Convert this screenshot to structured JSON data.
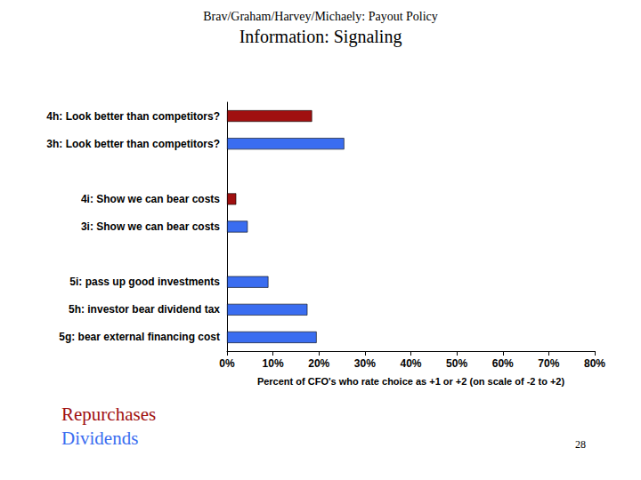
{
  "chart_data": {
    "type": "bar",
    "orientation": "horizontal",
    "subtitle": "Brav/Graham/Harvey/Michaely: Payout Policy",
    "title": "Information: Signaling",
    "x_label": "Percent of CFO's who rate choice as +1 or +2 (on scale of -2 to +2)",
    "categories": [
      "4h: Look better than competitors?",
      "3h: Look better than competitors?",
      null,
      "4i: Show we can bear costs",
      "3i: Show we can bear costs",
      null,
      "5i: pass up good investments",
      "5h: investor bear dividend tax",
      "5g: bear external financing cost"
    ],
    "series": [
      {
        "name": "Repurchases",
        "color": "#a01010",
        "values": [
          18.5,
          null,
          null,
          2,
          null,
          null,
          null,
          null,
          null
        ]
      },
      {
        "name": "Dividends",
        "color": "#3a6df0",
        "values": [
          null,
          25.5,
          null,
          null,
          4.5,
          null,
          9,
          17.5,
          19.5
        ]
      }
    ],
    "xlim": [
      0,
      80
    ],
    "xticks": [
      {
        "value": 0,
        "label": "0%"
      },
      {
        "value": 10,
        "label": "10%"
      },
      {
        "value": 20,
        "label": "20%"
      },
      {
        "value": 30,
        "label": "30%"
      },
      {
        "value": 40,
        "label": "40%"
      },
      {
        "value": 50,
        "label": "50%"
      },
      {
        "value": 60,
        "label": "60%"
      },
      {
        "value": 70,
        "label": "70%"
      },
      {
        "value": 80,
        "label": "80%"
      }
    ],
    "grid": false,
    "legend": "lower left",
    "annotations": [
      "28"
    ]
  }
}
